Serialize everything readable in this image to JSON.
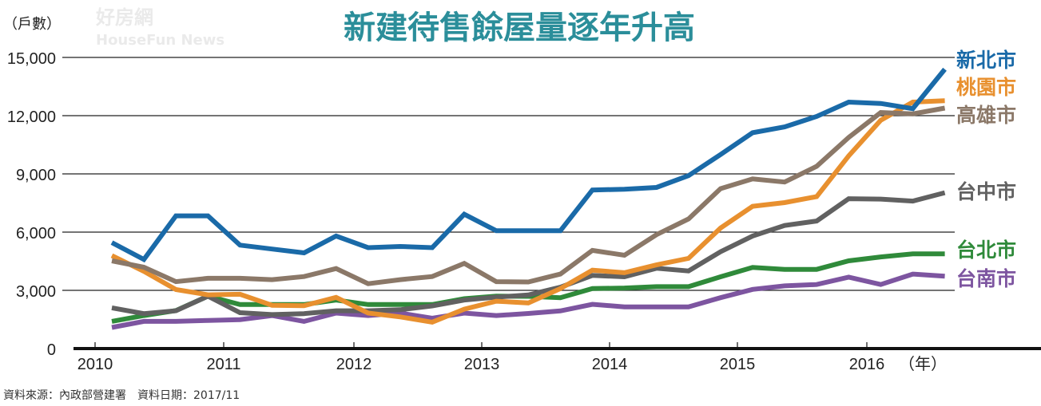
{
  "chart_data": {
    "type": "line",
    "title": "新建待售餘屋量逐年升高",
    "ylabel": "（戶數）",
    "xlabel": "（年）",
    "ylim": [
      0,
      15000
    ],
    "yticks": [
      "0",
      "3,000",
      "6,000",
      "9,000",
      "12,000",
      "15,000"
    ],
    "ytick_values": [
      0,
      3000,
      6000,
      9000,
      12000,
      15000
    ],
    "xticks": [
      "2010",
      "2011",
      "2012",
      "2013",
      "2014",
      "2015",
      "2016"
    ],
    "grid": true,
    "x": [
      "2010Q1",
      "2010Q2",
      "2010Q3",
      "2010Q4",
      "2011Q1",
      "2011Q2",
      "2011Q3",
      "2011Q4",
      "2012Q1",
      "2012Q2",
      "2012Q3",
      "2012Q4",
      "2013Q1",
      "2013Q2",
      "2013Q3",
      "2013Q4",
      "2014Q1",
      "2014Q2",
      "2014Q3",
      "2014Q4",
      "2015Q1",
      "2015Q2",
      "2015Q3",
      "2015Q4",
      "2016Q1",
      "2016Q2",
      "2016Q3"
    ],
    "series": [
      {
        "name": "新北市",
        "color": "#1a6aa8",
        "values": [
          5460,
          4590,
          6840,
          6840,
          5330,
          5130,
          4930,
          5800,
          5200,
          5260,
          5200,
          6920,
          6070,
          6070,
          6070,
          8170,
          8210,
          8300,
          8910,
          10000,
          11120,
          11420,
          11960,
          12700,
          12630,
          12360,
          14390
        ]
      },
      {
        "name": "桃園市",
        "color": "#e8902f",
        "values": [
          4790,
          3980,
          3040,
          2770,
          2800,
          2230,
          2210,
          2640,
          1830,
          1630,
          1360,
          2030,
          2440,
          2350,
          3090,
          4040,
          3910,
          4310,
          4650,
          6210,
          7330,
          7520,
          7830,
          9930,
          11760,
          12700,
          12770
        ]
      },
      {
        "name": "高雄市",
        "color": "#8b7868",
        "values": [
          4520,
          4190,
          3450,
          3620,
          3620,
          3550,
          3710,
          4120,
          3340,
          3550,
          3710,
          4390,
          3450,
          3430,
          3840,
          5060,
          4810,
          5870,
          6680,
          8240,
          8740,
          8580,
          9390,
          10880,
          12160,
          12090,
          12390
        ]
      },
      {
        "name": "台中市",
        "color": "#616161",
        "values": [
          2100,
          1800,
          1950,
          2700,
          1850,
          1750,
          1800,
          1950,
          1950,
          2000,
          2200,
          2500,
          2650,
          2760,
          3160,
          3770,
          3700,
          4140,
          4000,
          4990,
          5800,
          6340,
          6570,
          7720,
          7700,
          7600,
          8030
        ]
      },
      {
        "name": "台北市",
        "color": "#2f8a3a",
        "values": [
          1400,
          1700,
          1960,
          2700,
          2270,
          2270,
          2270,
          2500,
          2270,
          2270,
          2270,
          2570,
          2700,
          2690,
          2620,
          3090,
          3120,
          3190,
          3190,
          3700,
          4180,
          4080,
          4080,
          4520,
          4720,
          4880,
          4880
        ]
      },
      {
        "name": "台南市",
        "color": "#7d55a0",
        "values": [
          1090,
          1400,
          1400,
          1450,
          1490,
          1700,
          1400,
          1830,
          1700,
          1830,
          1560,
          1830,
          1700,
          1810,
          1940,
          2280,
          2150,
          2150,
          2150,
          2620,
          3050,
          3230,
          3300,
          3680,
          3300,
          3840,
          3730
        ]
      }
    ]
  },
  "source": "資料來源：內政部營建署　資料日期：2017/11",
  "watermark": "好房網 HouseFun News",
  "title_color": "#2b8e9a"
}
